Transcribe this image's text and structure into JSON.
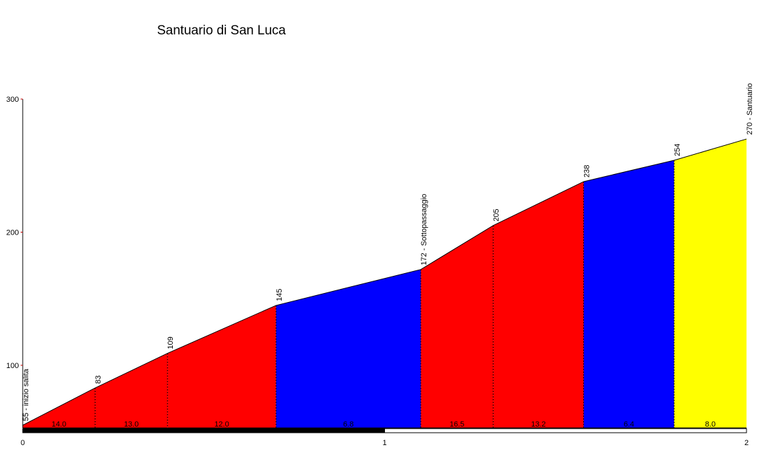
{
  "chart_data": {
    "type": "area",
    "title": "Santuario di San Luca",
    "xlabel": "",
    "ylabel": "",
    "xlim": [
      0,
      2
    ],
    "ylim": [
      50,
      300
    ],
    "yticks": [
      "100",
      "200",
      "300"
    ],
    "xticks": [
      "0",
      "1",
      "2"
    ],
    "points": [
      {
        "x": 0.0,
        "y": 55,
        "label": "55 - inizio salita"
      },
      {
        "x": 0.2,
        "y": 83,
        "label": "83"
      },
      {
        "x": 0.4,
        "y": 109,
        "label": "109"
      },
      {
        "x": 0.7,
        "y": 145,
        "label": "145"
      },
      {
        "x": 1.1,
        "y": 172,
        "label": "172 -  Sottopassaggio"
      },
      {
        "x": 1.3,
        "y": 205,
        "label": "205"
      },
      {
        "x": 1.55,
        "y": 238,
        "label": "238"
      },
      {
        "x": 1.8,
        "y": 254,
        "label": "254"
      },
      {
        "x": 2.0,
        "y": 270,
        "label": "270 - Santuario"
      }
    ],
    "segments": [
      {
        "x0": 0.0,
        "x1": 0.2,
        "gradient": "14.0",
        "color": "#ff0000"
      },
      {
        "x0": 0.2,
        "x1": 0.4,
        "gradient": "13.0",
        "color": "#ff0000"
      },
      {
        "x0": 0.4,
        "x1": 0.7,
        "gradient": "12.0",
        "color": "#ff0000"
      },
      {
        "x0": 0.7,
        "x1": 1.1,
        "gradient": "6.8",
        "color": "#0000ff"
      },
      {
        "x0": 1.1,
        "x1": 1.3,
        "gradient": "16.5",
        "color": "#ff0000"
      },
      {
        "x0": 1.3,
        "x1": 1.55,
        "gradient": "13.2",
        "color": "#ff0000"
      },
      {
        "x0": 1.55,
        "x1": 1.8,
        "gradient": "6.4",
        "color": "#0000ff"
      },
      {
        "x0": 1.8,
        "x1": 2.0,
        "gradient": "8.0",
        "color": "#ffff00"
      }
    ]
  }
}
